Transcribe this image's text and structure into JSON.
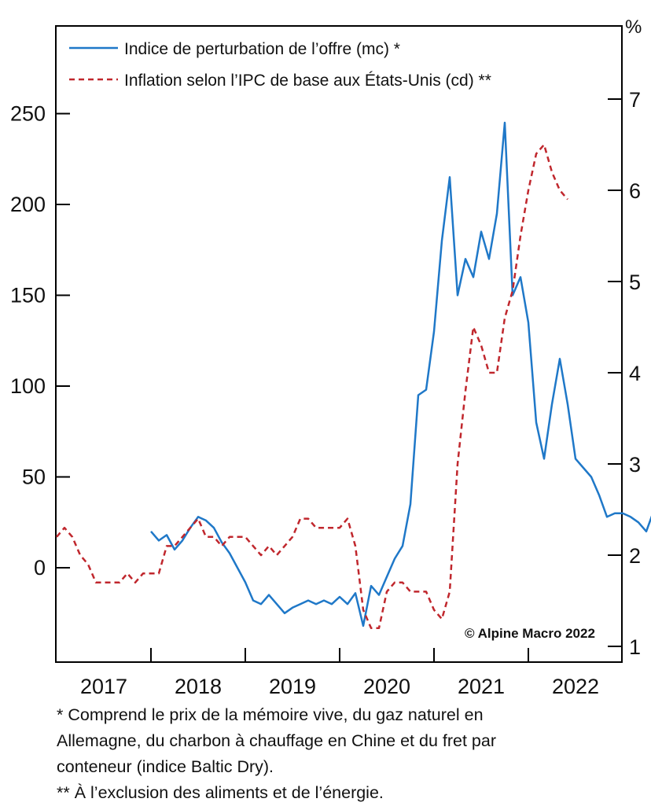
{
  "chart_data": {
    "type": "line",
    "right_axis_unit": "%",
    "copyright": "© Alpine Macro 2022",
    "grid": false,
    "legend_position": "top-left",
    "x_ticks": [
      "2017",
      "2018",
      "2019",
      "2020",
      "2021",
      "2022"
    ],
    "left_axis": {
      "ylim": [
        -50,
        300
      ],
      "ticks": [
        "0",
        "50",
        "100",
        "150",
        "200",
        "250"
      ]
    },
    "right_axis": {
      "ylim": [
        1,
        7.9
      ],
      "ticks": [
        "1",
        "2",
        "3",
        "4",
        "5",
        "6",
        "7"
      ]
    },
    "series": [
      {
        "name": "Indice de perturbation de l’offre (mc) *",
        "axis": "left",
        "color": "#1f78c8",
        "style": "solid",
        "x": [
          "2018-01",
          "2018-02",
          "2018-03",
          "2018-04",
          "2018-05",
          "2018-06",
          "2018-07",
          "2018-08",
          "2018-09",
          "2018-10",
          "2018-11",
          "2018-12",
          "2019-01",
          "2019-02",
          "2019-03",
          "2019-04",
          "2019-05",
          "2019-06",
          "2019-07",
          "2019-08",
          "2019-09",
          "2019-10",
          "2019-11",
          "2019-12",
          "2020-01",
          "2020-02",
          "2020-03",
          "2020-04",
          "2020-05",
          "2020-06",
          "2020-07",
          "2020-08",
          "2020-09",
          "2020-10",
          "2020-11",
          "2020-12",
          "2021-01",
          "2021-02",
          "2021-03",
          "2021-04",
          "2021-05",
          "2021-06",
          "2021-07",
          "2021-08",
          "2021-09",
          "2021-10",
          "2021-11",
          "2021-12",
          "2022-01",
          "2022-02",
          "2022-03",
          "2022-04",
          "2022-05",
          "2022-06",
          "2022-07",
          "2022-08",
          "2022-09",
          "2022-10",
          "2022-11",
          "2022-12"
        ],
        "values": [
          20,
          15,
          18,
          10,
          15,
          22,
          28,
          26,
          22,
          14,
          8,
          0,
          -8,
          -18,
          -20,
          -15,
          -20,
          -25,
          -22,
          -20,
          -18,
          -20,
          -18,
          -20,
          -16,
          -20,
          -14,
          -32,
          -10,
          -15,
          -5,
          5,
          12,
          35,
          95,
          98,
          130,
          180,
          215,
          150,
          170,
          160,
          185,
          170,
          195,
          245,
          150,
          160,
          135,
          80,
          60,
          90,
          115,
          90,
          60,
          55,
          50,
          40,
          28,
          30
        ],
        "x_continue": [
          "2023-01",
          "2023-02",
          "2023-03",
          "2023-04",
          "2023-05"
        ],
        "values_continue": [
          30,
          28,
          25,
          20,
          32
        ]
      },
      {
        "name": "Inflation selon l’IPC de base aux États-Unis (cd) **",
        "axis": "right",
        "color": "#c0272d",
        "style": "dashed",
        "x": [
          "2017-01",
          "2017-02",
          "2017-03",
          "2017-04",
          "2017-05",
          "2017-06",
          "2017-07",
          "2017-08",
          "2017-09",
          "2017-10",
          "2017-11",
          "2017-12",
          "2018-01",
          "2018-02",
          "2018-03",
          "2018-04",
          "2018-05",
          "2018-06",
          "2018-07",
          "2018-08",
          "2018-09",
          "2018-10",
          "2018-11",
          "2018-12",
          "2019-01",
          "2019-02",
          "2019-03",
          "2019-04",
          "2019-05",
          "2019-06",
          "2019-07",
          "2019-08",
          "2019-09",
          "2019-10",
          "2019-11",
          "2019-12",
          "2020-01",
          "2020-02",
          "2020-03",
          "2020-04",
          "2020-05",
          "2020-06",
          "2020-07",
          "2020-08",
          "2020-09",
          "2020-10",
          "2020-11",
          "2020-12",
          "2021-01",
          "2021-02",
          "2021-03",
          "2021-04",
          "2021-05",
          "2021-06",
          "2021-07",
          "2021-08",
          "2021-09",
          "2021-10",
          "2021-11",
          "2021-12",
          "2022-01",
          "2022-02",
          "2022-03",
          "2022-04",
          "2022-05",
          "2022-06"
        ],
        "values": [
          2.2,
          2.3,
          2.2,
          2.0,
          1.9,
          1.7,
          1.7,
          1.7,
          1.7,
          1.8,
          1.7,
          1.8,
          1.8,
          1.8,
          2.1,
          2.1,
          2.2,
          2.3,
          2.4,
          2.2,
          2.2,
          2.1,
          2.2,
          2.2,
          2.2,
          2.1,
          2.0,
          2.1,
          2.0,
          2.1,
          2.2,
          2.4,
          2.4,
          2.3,
          2.3,
          2.3,
          2.3,
          2.4,
          2.1,
          1.4,
          1.2,
          1.2,
          1.6,
          1.7,
          1.7,
          1.6,
          1.6,
          1.6,
          1.4,
          1.3,
          1.6,
          3.0,
          3.8,
          4.5,
          4.3,
          4.0,
          4.0,
          4.6,
          4.9,
          5.5,
          6.0,
          6.4,
          6.5,
          6.2,
          6.0,
          5.9
        ]
      }
    ]
  },
  "footnotes": {
    "line1": "* Comprend le prix de la mémoire vive, du gaz naturel en",
    "line2": "Allemagne, du charbon à chauffage en Chine et du fret par",
    "line3": "conteneur (indice Baltic Dry).",
    "line4": "** À l’exclusion des aliments et de l’énergie."
  }
}
